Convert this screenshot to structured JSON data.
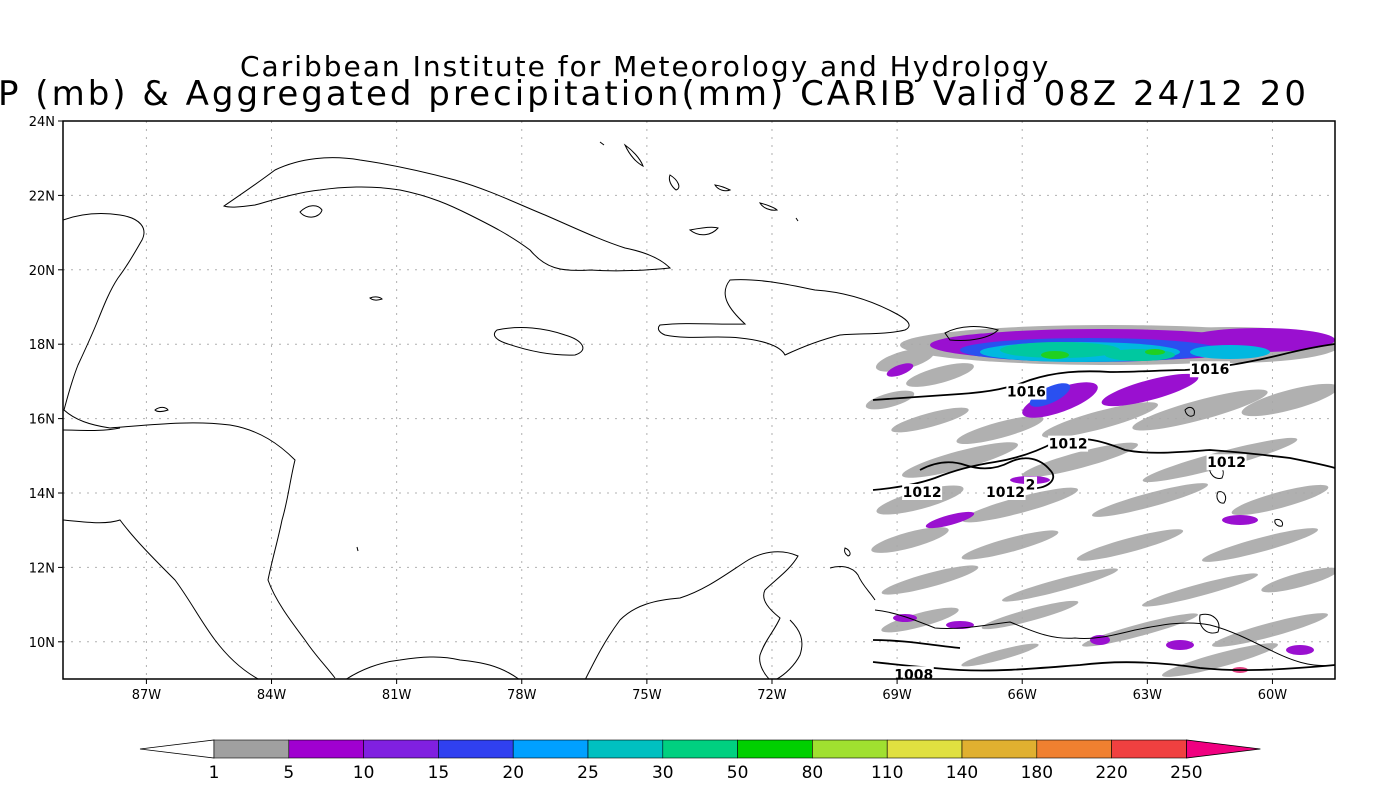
{
  "title": {
    "line1": "Caribbean Institute for Meteorology and Hydrology",
    "line2": "P (mb) & Aggregated precipitation(mm) CARIB Valid 08Z 24/12 20"
  },
  "map": {
    "lon_range": [
      -89,
      -58.5
    ],
    "lat_range": [
      9,
      24
    ],
    "lat_ticks": [
      "24N",
      "22N",
      "20N",
      "18N",
      "16N",
      "14N",
      "12N",
      "10N"
    ],
    "lat_tick_values": [
      24,
      22,
      20,
      18,
      16,
      14,
      12,
      10
    ],
    "lon_ticks": [
      "87W",
      "84W",
      "81W",
      "78W",
      "75W",
      "72W",
      "69W",
      "66W",
      "63W",
      "60W"
    ],
    "lon_tick_values": [
      -87,
      -84,
      -81,
      -78,
      -75,
      -72,
      -69,
      -66,
      -63,
      -60
    ],
    "grid": true,
    "isobar_labels": [
      {
        "text": "1016",
        "lon": -65.9,
        "lat": 16.7
      },
      {
        "text": "1016",
        "lon": -61.5,
        "lat": 17.3
      },
      {
        "text": "1012",
        "lon": -64.9,
        "lat": 15.3
      },
      {
        "text": "1012",
        "lon": -61.1,
        "lat": 14.8
      },
      {
        "text": "1012",
        "lon": -68.4,
        "lat": 14.0
      },
      {
        "text": "1012",
        "lon": -66.4,
        "lat": 14.0
      },
      {
        "text": "2",
        "lon": -65.8,
        "lat": 14.2
      },
      {
        "text": "1008",
        "lon": -68.6,
        "lat": 9.1
      }
    ]
  },
  "colorbar": {
    "labels": [
      "1",
      "5",
      "10",
      "15",
      "20",
      "25",
      "30",
      "50",
      "80",
      "110",
      "140",
      "180",
      "220",
      "250"
    ],
    "colors": [
      "#ffffff",
      "#a0a0a0",
      "#a000d0",
      "#8020e0",
      "#3040f0",
      "#00a0ff",
      "#00c0c0",
      "#00d080",
      "#00d000",
      "#a0e030",
      "#e0e040",
      "#e0b030",
      "#f08030",
      "#f04040",
      "#f00080"
    ]
  }
}
